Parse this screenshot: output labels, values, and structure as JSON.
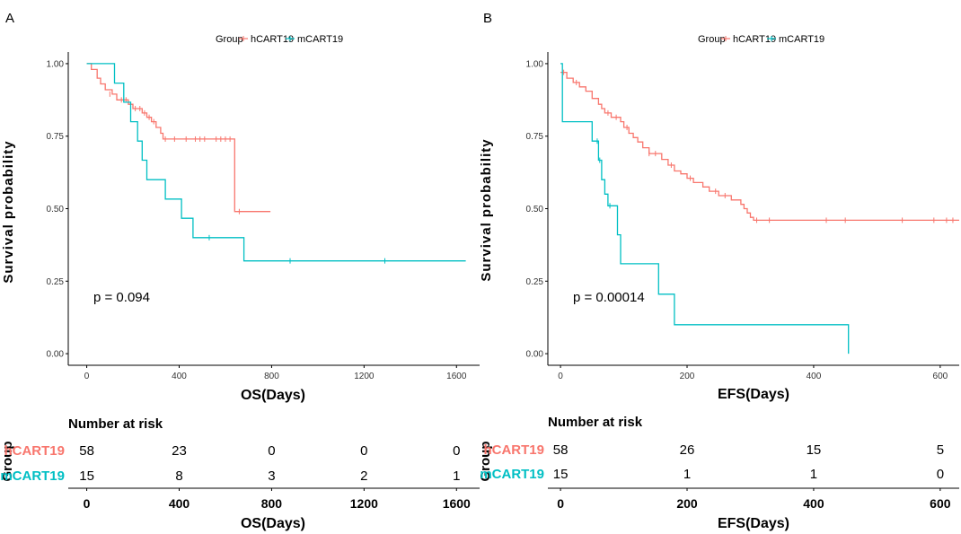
{
  "colors": {
    "hCART19": "#F8766D",
    "mCART19": "#00BFC4",
    "axis": "#000000",
    "text": "#000000"
  },
  "chart_data": [
    {
      "panel": "A",
      "type": "line",
      "legend": {
        "title": "Group",
        "entries": [
          "hCART19",
          "mCART19"
        ]
      },
      "xlabel": "OS(Days)",
      "ylabel": "Survival probability",
      "xlim": [
        -80,
        1700
      ],
      "ylim": [
        -0.04,
        1.04
      ],
      "xticks": [
        0,
        400,
        800,
        1200,
        1600
      ],
      "xtick_labels": [
        "0",
        "400",
        "800",
        "1200",
        "1600"
      ],
      "yticks": [
        0,
        0.25,
        0.5,
        0.75,
        1.0
      ],
      "ytick_labels": [
        "0.00",
        "0.25",
        "0.50",
        "0.75",
        "1.00"
      ],
      "pvalue": "p = 0.094",
      "series": [
        {
          "name": "hCART19",
          "steps": [
            [
              0,
              1.0
            ],
            [
              20,
              0.98
            ],
            [
              45,
              0.95
            ],
            [
              60,
              0.93
            ],
            [
              80,
              0.91
            ],
            [
              110,
              0.895
            ],
            [
              130,
              0.875
            ],
            [
              180,
              0.86
            ],
            [
              200,
              0.845
            ],
            [
              240,
              0.83
            ],
            [
              260,
              0.815
            ],
            [
              280,
              0.8
            ],
            [
              300,
              0.78
            ],
            [
              320,
              0.76
            ],
            [
              330,
              0.74
            ],
            [
              640,
              0.74
            ],
            [
              640,
              0.49
            ],
            [
              795,
              0.49
            ]
          ],
          "censors": [
            [
              100,
              0.895
            ],
            [
              150,
              0.875
            ],
            [
              170,
              0.875
            ],
            [
              210,
              0.845
            ],
            [
              230,
              0.845
            ],
            [
              250,
              0.83
            ],
            [
              270,
              0.815
            ],
            [
              290,
              0.8
            ],
            [
              340,
              0.74
            ],
            [
              380,
              0.74
            ],
            [
              430,
              0.74
            ],
            [
              470,
              0.74
            ],
            [
              490,
              0.74
            ],
            [
              510,
              0.74
            ],
            [
              560,
              0.74
            ],
            [
              580,
              0.74
            ],
            [
              600,
              0.74
            ],
            [
              620,
              0.74
            ],
            [
              660,
              0.49
            ]
          ]
        },
        {
          "name": "mCART19",
          "steps": [
            [
              0,
              1.0
            ],
            [
              120,
              1.0
            ],
            [
              120,
              0.933
            ],
            [
              160,
              0.867
            ],
            [
              190,
              0.8
            ],
            [
              220,
              0.733
            ],
            [
              240,
              0.667
            ],
            [
              260,
              0.6
            ],
            [
              340,
              0.533
            ],
            [
              410,
              0.467
            ],
            [
              460,
              0.4
            ],
            [
              680,
              0.4
            ],
            [
              680,
              0.32
            ],
            [
              1640,
              0.32
            ]
          ],
          "censors": [
            [
              530,
              0.4
            ],
            [
              880,
              0.32
            ],
            [
              1290,
              0.32
            ]
          ]
        }
      ],
      "risk_table": {
        "title": "Number at risk",
        "group_axis_label": "Group",
        "times": [
          "0",
          "400",
          "800",
          "1200",
          "1600"
        ],
        "rows": [
          {
            "group": "hCART19",
            "counts": [
              "58",
              "23",
              "0",
              "0",
              "0"
            ]
          },
          {
            "group": "mCART19",
            "counts": [
              "15",
              "8",
              "3",
              "2",
              "1"
            ]
          }
        ],
        "xlabel": "OS(Days)"
      }
    },
    {
      "panel": "B",
      "type": "line",
      "legend": {
        "title": "Group",
        "entries": [
          "hCART19",
          "mCART19"
        ]
      },
      "xlabel": "EFS(Days)",
      "ylabel": "Survival probability",
      "xlim": [
        -20,
        630
      ],
      "ylim": [
        -0.04,
        1.04
      ],
      "xticks": [
        0,
        200,
        400,
        600
      ],
      "xtick_labels": [
        "0",
        "200",
        "400",
        "600"
      ],
      "yticks": [
        0,
        0.25,
        0.5,
        0.75,
        1.0
      ],
      "ytick_labels": [
        "0.00",
        "0.25",
        "0.50",
        "0.75",
        "1.00"
      ],
      "pvalue": "p = 0.00014",
      "series": [
        {
          "name": "hCART19",
          "steps": [
            [
              0,
              0.97
            ],
            [
              10,
              0.95
            ],
            [
              20,
              0.935
            ],
            [
              30,
              0.92
            ],
            [
              40,
              0.905
            ],
            [
              50,
              0.88
            ],
            [
              60,
              0.86
            ],
            [
              65,
              0.845
            ],
            [
              70,
              0.83
            ],
            [
              80,
              0.815
            ],
            [
              95,
              0.8
            ],
            [
              100,
              0.78
            ],
            [
              108,
              0.76
            ],
            [
              115,
              0.745
            ],
            [
              122,
              0.73
            ],
            [
              130,
              0.71
            ],
            [
              140,
              0.69
            ],
            [
              160,
              0.67
            ],
            [
              170,
              0.65
            ],
            [
              180,
              0.63
            ],
            [
              190,
              0.62
            ],
            [
              200,
              0.605
            ],
            [
              210,
              0.59
            ],
            [
              225,
              0.575
            ],
            [
              235,
              0.56
            ],
            [
              250,
              0.545
            ],
            [
              270,
              0.53
            ],
            [
              285,
              0.515
            ],
            [
              290,
              0.5
            ],
            [
              295,
              0.485
            ],
            [
              300,
              0.47
            ],
            [
              305,
              0.46
            ],
            [
              630,
              0.46
            ]
          ],
          "censors": [
            [
              5,
              0.97
            ],
            [
              25,
              0.935
            ],
            [
              75,
              0.83
            ],
            [
              88,
              0.815
            ],
            [
              105,
              0.78
            ],
            [
              140,
              0.69
            ],
            [
              150,
              0.69
            ],
            [
              175,
              0.65
            ],
            [
              205,
              0.605
            ],
            [
              245,
              0.56
            ],
            [
              260,
              0.545
            ],
            [
              310,
              0.46
            ],
            [
              330,
              0.46
            ],
            [
              420,
              0.46
            ],
            [
              450,
              0.46
            ],
            [
              540,
              0.46
            ],
            [
              590,
              0.46
            ],
            [
              610,
              0.46
            ],
            [
              620,
              0.46
            ]
          ]
        },
        {
          "name": "mCART19",
          "steps": [
            [
              0,
              1.0
            ],
            [
              3,
              1.0
            ],
            [
              3,
              0.8
            ],
            [
              50,
              0.8
            ],
            [
              50,
              0.733
            ],
            [
              60,
              0.667
            ],
            [
              65,
              0.6
            ],
            [
              70,
              0.55
            ],
            [
              75,
              0.51
            ],
            [
              90,
              0.51
            ],
            [
              90,
              0.41
            ],
            [
              95,
              0.41
            ],
            [
              95,
              0.31
            ],
            [
              155,
              0.31
            ],
            [
              155,
              0.205
            ],
            [
              180,
              0.205
            ],
            [
              180,
              0.1
            ],
            [
              455,
              0.1
            ],
            [
              455,
              0.0
            ]
          ],
          "censors": [
            [
              58,
              0.733
            ],
            [
              62,
              0.667
            ],
            [
              78,
              0.51
            ]
          ]
        }
      ],
      "risk_table": {
        "title": "Number at risk",
        "group_axis_label": "Group",
        "times": [
          "0",
          "200",
          "400",
          "600"
        ],
        "rows": [
          {
            "group": "hCART19",
            "counts": [
              "58",
              "26",
              "15",
              "5"
            ]
          },
          {
            "group": "mCART19",
            "counts": [
              "15",
              "1",
              "1",
              "0"
            ]
          }
        ],
        "xlabel": "EFS(Days)"
      }
    }
  ]
}
